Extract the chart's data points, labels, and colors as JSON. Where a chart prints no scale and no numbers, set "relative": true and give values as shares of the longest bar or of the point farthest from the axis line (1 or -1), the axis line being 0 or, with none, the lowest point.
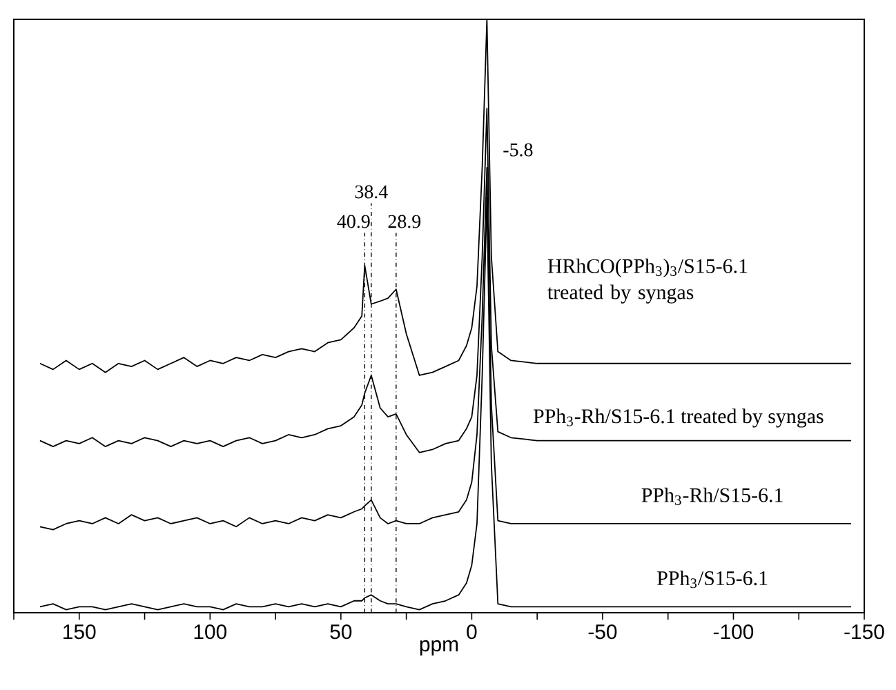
{
  "chart_data": {
    "type": "line",
    "xlabel": "ppm",
    "relative": true,
    "tick_labels": "x",
    "grid": false,
    "marker": "none",
    "line_style": "solid",
    "xlim": [
      175,
      -150
    ],
    "xticks": [
      {
        "value": 175,
        "label": null
      },
      150,
      {
        "value": 125,
        "label": null
      },
      100,
      {
        "value": 75,
        "label": null
      },
      50,
      {
        "value": 25,
        "label": null
      },
      0,
      {
        "value": -25,
        "label": null
      },
      -50,
      {
        "value": -75,
        "label": null
      },
      -100,
      {
        "value": -125,
        "label": null
      },
      -150
    ],
    "x": [
      165,
      160,
      155,
      150,
      145,
      140,
      135,
      130,
      125,
      120,
      115,
      110,
      105,
      100,
      95,
      90,
      85,
      80,
      75,
      70,
      65,
      60,
      55,
      50,
      45,
      42,
      40.9,
      38.4,
      35,
      32,
      28.9,
      25,
      20,
      15,
      10,
      5,
      2,
      0,
      -2,
      -4,
      -5.8,
      -7.5,
      -10,
      -15,
      -25,
      -40,
      -60,
      -80,
      -100,
      -120,
      -145
    ],
    "series": [
      {
        "name": "HRhCO(PPh$_{3}$)$_{3}$/S15-6.1 treated by syngas",
        "color": "#000000",
        "values": [
          0.42,
          0.41,
          0.425,
          0.41,
          0.42,
          0.405,
          0.42,
          0.415,
          0.425,
          0.41,
          0.42,
          0.43,
          0.415,
          0.425,
          0.42,
          0.43,
          0.425,
          0.435,
          0.43,
          0.44,
          0.445,
          0.44,
          0.455,
          0.46,
          0.48,
          0.5,
          0.585,
          0.52,
          0.525,
          0.53,
          0.545,
          0.47,
          0.4,
          0.405,
          0.415,
          0.425,
          0.45,
          0.48,
          0.55,
          0.75,
          1.0,
          0.6,
          0.44,
          0.425,
          0.42,
          0.42,
          0.42,
          0.42,
          0.42,
          0.42,
          0.42
        ]
      },
      {
        "name": "PPh$_{3}$-Rh/S15-6.1 treated by syngas",
        "color": "#000000",
        "values": [
          0.29,
          0.28,
          0.29,
          0.285,
          0.295,
          0.28,
          0.29,
          0.285,
          0.295,
          0.29,
          0.28,
          0.29,
          0.285,
          0.29,
          0.28,
          0.29,
          0.295,
          0.285,
          0.29,
          0.3,
          0.295,
          0.3,
          0.31,
          0.315,
          0.33,
          0.35,
          0.37,
          0.4,
          0.345,
          0.33,
          0.335,
          0.3,
          0.27,
          0.275,
          0.285,
          0.29,
          0.31,
          0.33,
          0.4,
          0.6,
          0.85,
          0.45,
          0.305,
          0.295,
          0.29,
          0.29,
          0.29,
          0.29,
          0.29,
          0.29,
          0.29
        ]
      },
      {
        "name": "PPh$_{3}$-Rh/S15-6.1",
        "color": "#000000",
        "values": [
          0.145,
          0.14,
          0.15,
          0.155,
          0.15,
          0.16,
          0.15,
          0.165,
          0.155,
          0.16,
          0.15,
          0.155,
          0.16,
          0.15,
          0.155,
          0.145,
          0.16,
          0.15,
          0.155,
          0.15,
          0.16,
          0.155,
          0.165,
          0.16,
          0.17,
          0.175,
          0.18,
          0.19,
          0.16,
          0.15,
          0.155,
          0.15,
          0.15,
          0.16,
          0.165,
          0.17,
          0.19,
          0.22,
          0.3,
          0.5,
          0.75,
          0.35,
          0.155,
          0.15,
          0.15,
          0.15,
          0.15,
          0.15,
          0.15,
          0.15,
          0.15
        ]
      },
      {
        "name": "PPh$_{3}$/S15-6.1",
        "color": "#000000",
        "values": [
          0.01,
          0.015,
          0.005,
          0.01,
          0.01,
          0.005,
          0.01,
          0.015,
          0.01,
          0.005,
          0.01,
          0.015,
          0.01,
          0.01,
          0.005,
          0.015,
          0.01,
          0.01,
          0.015,
          0.01,
          0.015,
          0.01,
          0.015,
          0.01,
          0.02,
          0.02,
          0.025,
          0.03,
          0.02,
          0.015,
          0.015,
          0.01,
          0.005,
          0.015,
          0.02,
          0.03,
          0.05,
          0.08,
          0.15,
          0.4,
          0.7,
          0.25,
          0.015,
          0.01,
          0.01,
          0.01,
          0.01,
          0.01,
          0.01,
          0.01,
          0.01
        ]
      }
    ],
    "ref_lines": [
      {
        "axis": "x",
        "value": 40.9,
        "label": "40.9",
        "line_style": "dashed"
      },
      {
        "axis": "x",
        "value": 38.4,
        "label": "38.4",
        "line_style": "dashed"
      },
      {
        "axis": "x",
        "value": 28.9,
        "label": "28.9",
        "line_style": "dashed"
      }
    ],
    "annotations": [
      "-5.8"
    ]
  }
}
